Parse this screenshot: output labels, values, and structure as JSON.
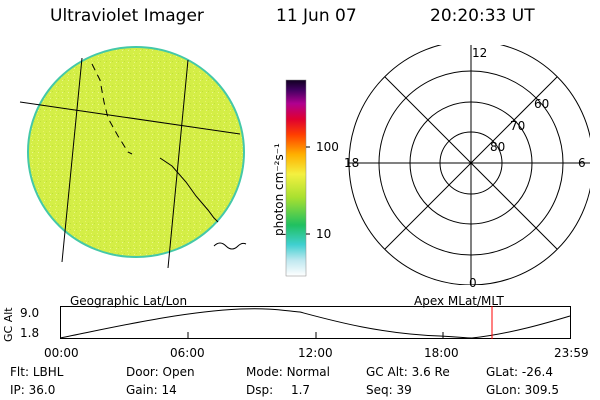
{
  "header": {
    "instrument": "Ultraviolet Imager",
    "date": "11 Jun 07",
    "time": "20:20:33 UT"
  },
  "colorbar": {
    "unit_label": "photon cm⁻²s⁻¹",
    "ticks": [
      "100",
      "10"
    ]
  },
  "polar": {
    "lat_labels": [
      "80",
      "70",
      "60"
    ],
    "mlt_labels": {
      "top": "12",
      "bottom": "0",
      "left": "18",
      "right": "6"
    }
  },
  "timeline": {
    "left_title": "Geographic Lat/Lon",
    "right_title": "Apex MLat/MLT",
    "y_axis_label": "GC Alt",
    "y_ticks": [
      "9.0",
      "1.8"
    ],
    "x_ticks": [
      "00:00",
      "06:00",
      "12:00",
      "18:00",
      "23:59"
    ]
  },
  "status": {
    "row1": [
      {
        "label": "Flt:",
        "value": "LBHL"
      },
      {
        "label": "Door:",
        "value": "Open"
      },
      {
        "label": "Mode:",
        "value": "Normal"
      },
      {
        "label": "GC Alt:",
        "value": "3.6 Re"
      },
      {
        "label": "GLat:",
        "value": "-26.4"
      }
    ],
    "row2": [
      {
        "label": "IP:",
        "value": "36.0"
      },
      {
        "label": "Gain:",
        "value": "14"
      },
      {
        "label": "Dsp:",
        "value": "1.7"
      },
      {
        "label": "Seq:",
        "value": "39"
      },
      {
        "label": "GLon:",
        "value": "309.5"
      }
    ]
  },
  "colors": {
    "disk_fill": "#d4ee46",
    "disk_edge": "#44c8a8",
    "current_time_marker": "#ff0000"
  }
}
